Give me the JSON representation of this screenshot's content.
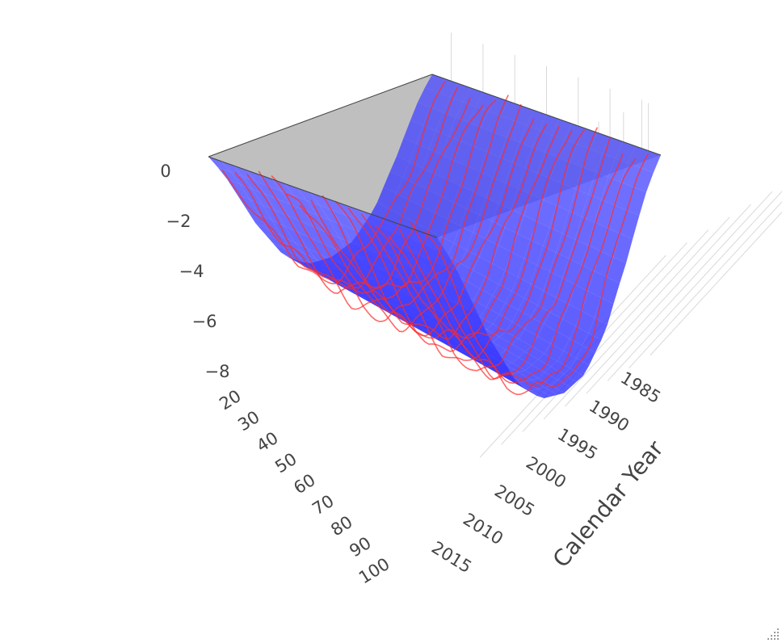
{
  "chart_data": {
    "type": "surface3d",
    "title": "",
    "colors": {
      "surface": "#0000ff",
      "fitted_curves": "#ff2a2a",
      "top_shadow": "#b4b4b4",
      "grid": "#d9d9d9",
      "axis_text": "#444444"
    },
    "x_axis": {
      "title": "",
      "ticks": [
        20,
        30,
        40,
        50,
        60,
        70,
        80,
        90,
        100
      ],
      "range": [
        15,
        105
      ]
    },
    "y_axis": {
      "title": "Calendar Year",
      "ticks": [
        1985,
        1990,
        1995,
        2000,
        2005,
        2010,
        2015
      ],
      "range": [
        1982,
        2018
      ]
    },
    "z_axis": {
      "title": "",
      "ticks": [
        "0",
        "−2",
        "−4",
        "−6",
        "−8"
      ],
      "tick_values": [
        0,
        -2,
        -4,
        -6,
        -8
      ],
      "range": [
        -9.5,
        0
      ]
    },
    "surface_profile": {
      "x": [
        15,
        20,
        30,
        40,
        50,
        60,
        70,
        80,
        90,
        100,
        105
      ],
      "z": [
        0,
        -1.2,
        -4.5,
        -7.2,
        -8.6,
        -8.9,
        -8.6,
        -7.4,
        -4.8,
        -1.3,
        0
      ]
    },
    "curve_years": [
      1984,
      1986,
      1988,
      1990,
      1992,
      1994,
      1996,
      1998,
      2000,
      2002,
      2004,
      2006,
      2008,
      2010,
      2012,
      2014,
      2016
    ]
  }
}
